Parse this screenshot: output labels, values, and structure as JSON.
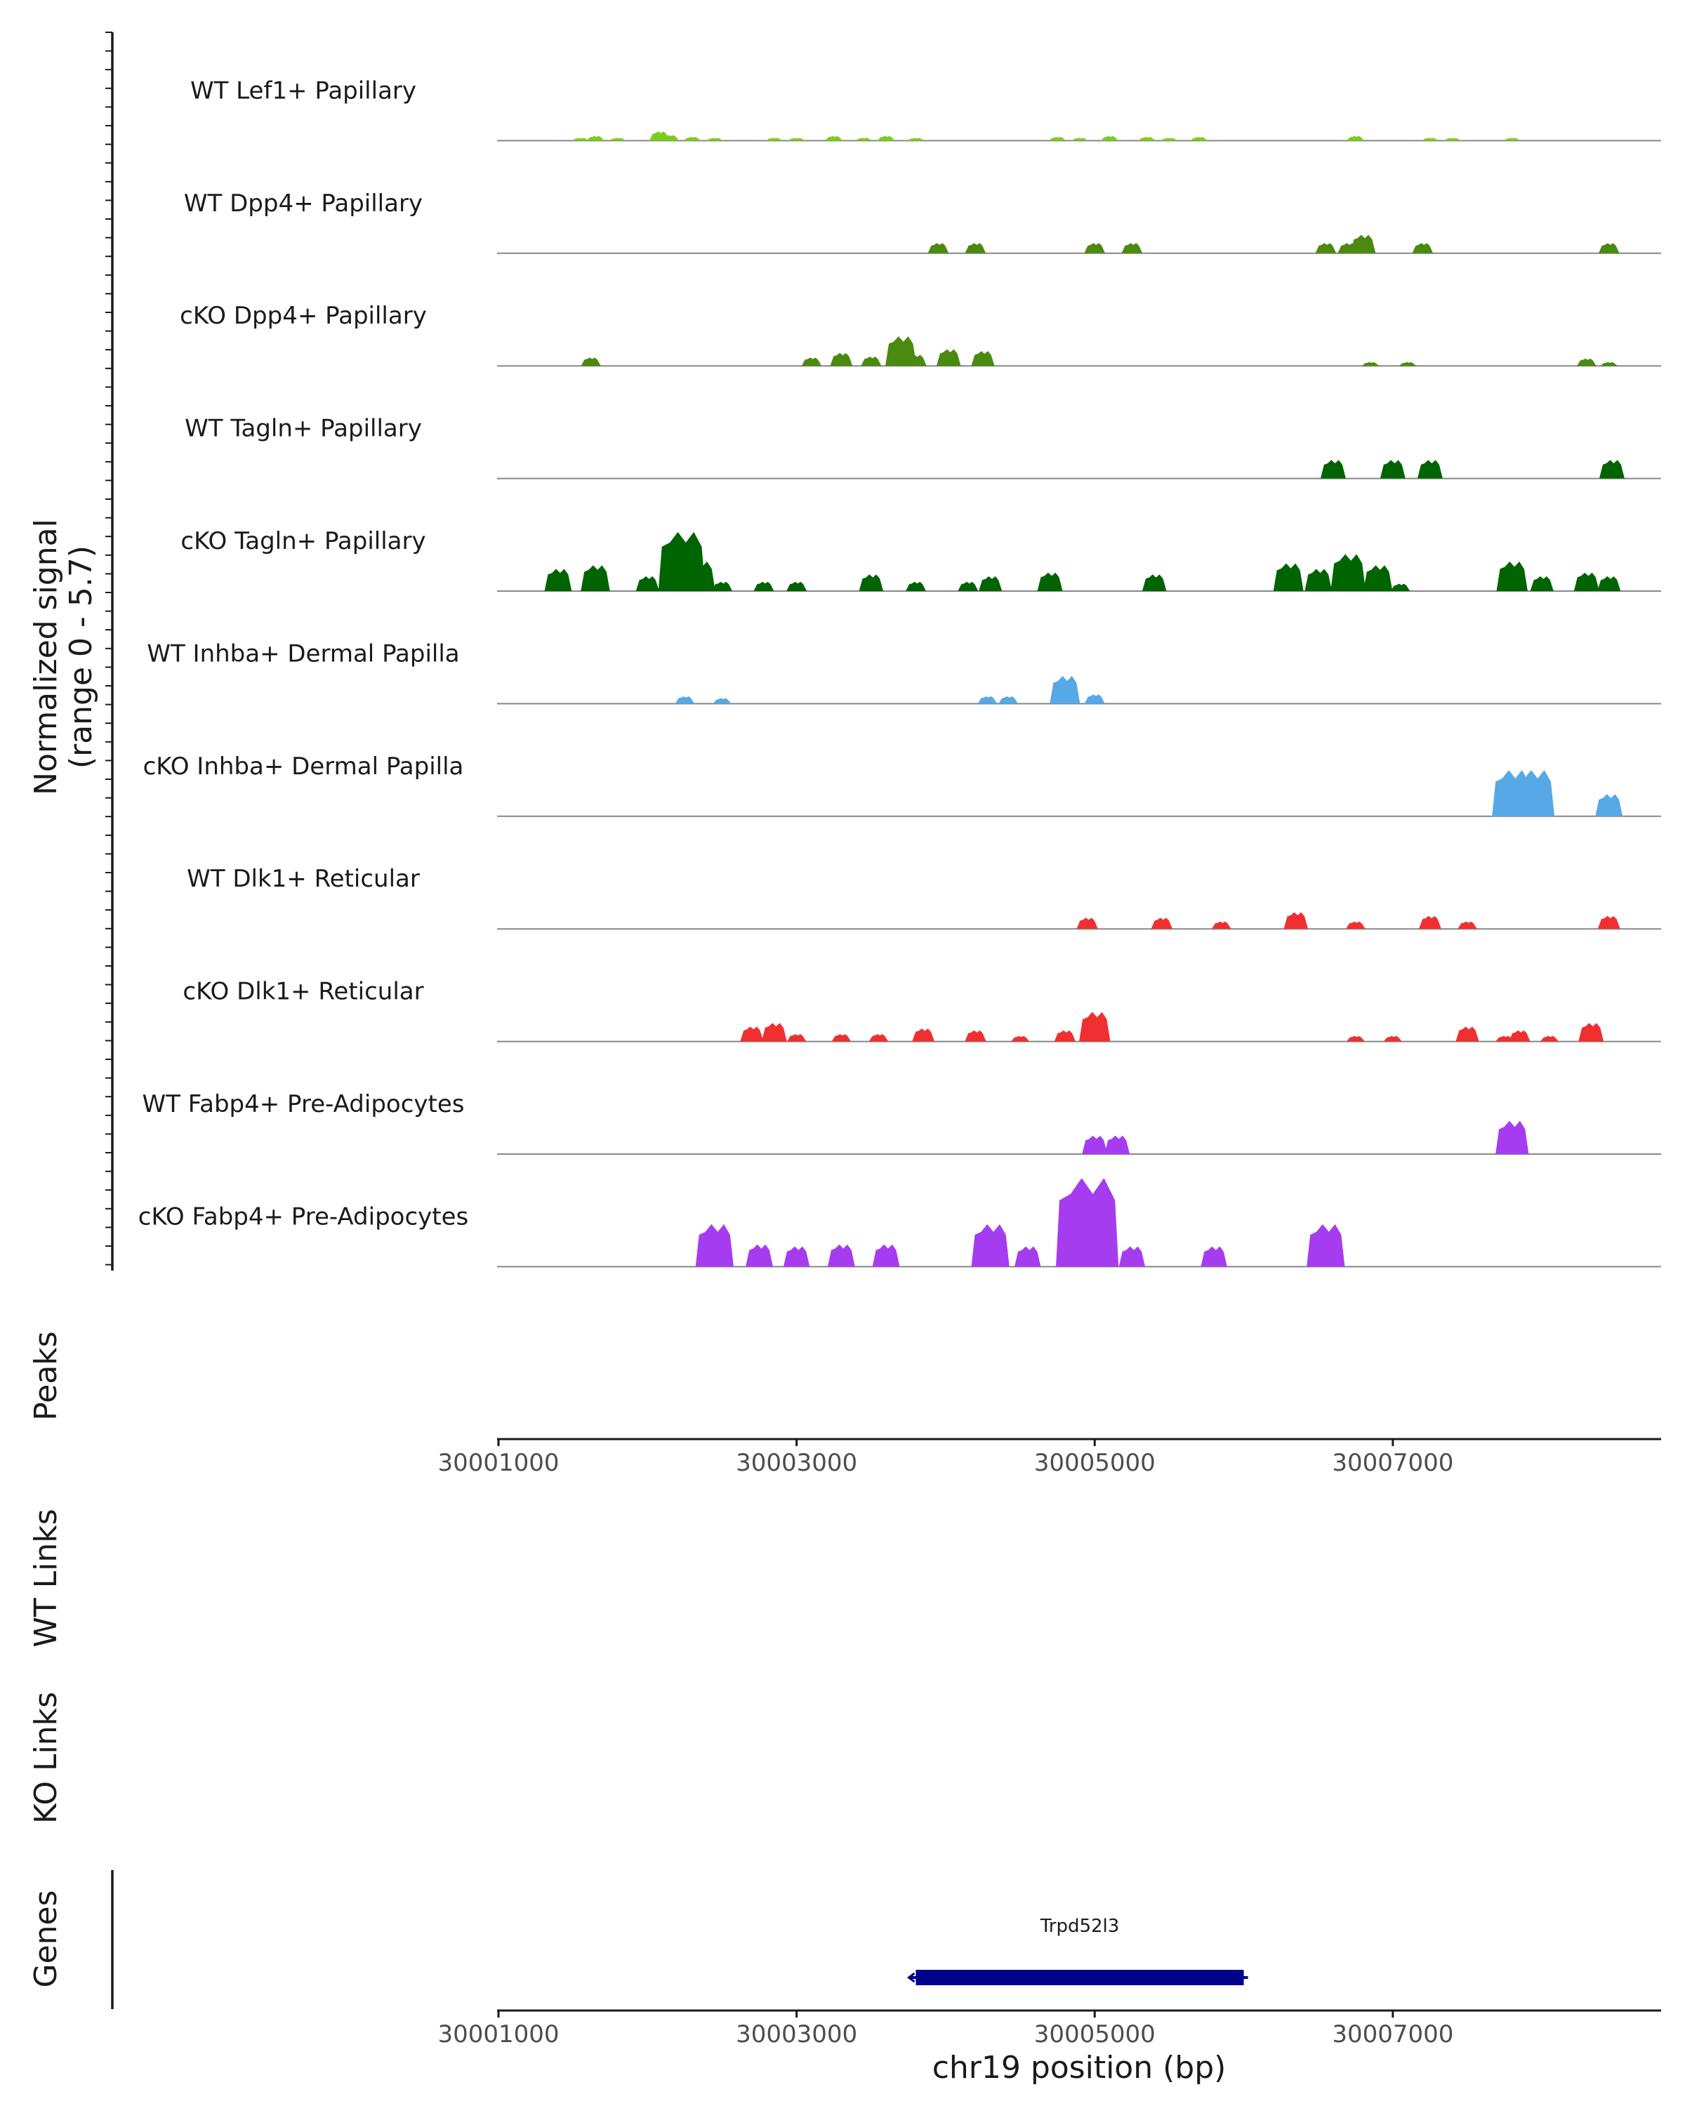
{
  "chart_data": {
    "type": "area",
    "title": "",
    "ylabel": "Normalized signal",
    "ylabel_range": "(range 0 - 5.7)",
    "xlabel": "chr19 position (bp)",
    "xlim": [
      30001000,
      30008800
    ],
    "ylim": [
      0,
      5.7
    ],
    "x_ticks": [
      30001000,
      30003000,
      30005000,
      30007000
    ],
    "x_tick_labels": [
      "30001000",
      "30003000",
      "30005000",
      "30007000"
    ],
    "series": [
      {
        "name": "WT Lef1+ Papillary",
        "color": "#7CCD1A",
        "points": [
          [
            30001550,
            0.15
          ],
          [
            30001650,
            0.25
          ],
          [
            30001800,
            0.15
          ],
          [
            30002080,
            0.5
          ],
          [
            30002150,
            0.3
          ],
          [
            30002300,
            0.2
          ],
          [
            30002450,
            0.15
          ],
          [
            30002850,
            0.15
          ],
          [
            30003000,
            0.15
          ],
          [
            30003250,
            0.25
          ],
          [
            30003450,
            0.15
          ],
          [
            30003600,
            0.25
          ],
          [
            30003800,
            0.15
          ],
          [
            30004750,
            0.2
          ],
          [
            30004900,
            0.15
          ],
          [
            30005100,
            0.25
          ],
          [
            30005350,
            0.2
          ],
          [
            30005500,
            0.15
          ],
          [
            30005700,
            0.2
          ],
          [
            30006750,
            0.25
          ],
          [
            30007250,
            0.15
          ],
          [
            30007400,
            0.15
          ],
          [
            30007800,
            0.15
          ]
        ]
      },
      {
        "name": "WT Dpp4+ Papillary",
        "color": "#4A8A0E",
        "points": [
          [
            30003950,
            0.55
          ],
          [
            30004200,
            0.55
          ],
          [
            30005000,
            0.55
          ],
          [
            30005250,
            0.55
          ],
          [
            30006550,
            0.55
          ],
          [
            30006700,
            0.55
          ],
          [
            30006800,
            1.0
          ],
          [
            30007200,
            0.55
          ],
          [
            30008450,
            0.55
          ]
        ]
      },
      {
        "name": "cKO Dpp4+ Papillary",
        "color": "#4A8A0E",
        "points": [
          [
            30001620,
            0.45
          ],
          [
            30003100,
            0.45
          ],
          [
            30003300,
            0.7
          ],
          [
            30003500,
            0.5
          ],
          [
            30003700,
            1.6
          ],
          [
            30003800,
            0.6
          ],
          [
            30004020,
            0.9
          ],
          [
            30004250,
            0.8
          ],
          [
            30006850,
            0.2
          ],
          [
            30007100,
            0.2
          ],
          [
            30008300,
            0.4
          ],
          [
            30008450,
            0.2
          ]
        ]
      },
      {
        "name": "WT Tagln+ Papillary",
        "color": "#006400",
        "points": [
          [
            30006600,
            1.0
          ],
          [
            30007000,
            1.0
          ],
          [
            30007250,
            1.0
          ],
          [
            30008470,
            1.0
          ]
        ]
      },
      {
        "name": "cKO Tagln+ Papillary",
        "color": "#006400",
        "points": [
          [
            30001400,
            1.2
          ],
          [
            30001650,
            1.4
          ],
          [
            30002000,
            0.8
          ],
          [
            30002230,
            3.2
          ],
          [
            30002350,
            1.6
          ],
          [
            30002500,
            0.5
          ],
          [
            30002780,
            0.5
          ],
          [
            30003000,
            0.5
          ],
          [
            30003500,
            0.9
          ],
          [
            30003800,
            0.5
          ],
          [
            30004150,
            0.5
          ],
          [
            30004300,
            0.8
          ],
          [
            30004700,
            1.0
          ],
          [
            30005400,
            0.9
          ],
          [
            30006300,
            1.5
          ],
          [
            30006500,
            1.2
          ],
          [
            30006700,
            2.0
          ],
          [
            30006900,
            1.4
          ],
          [
            30007050,
            0.4
          ],
          [
            30007800,
            1.6
          ],
          [
            30008000,
            0.8
          ],
          [
            30008300,
            1.0
          ],
          [
            30008450,
            0.8
          ]
        ]
      },
      {
        "name": "WT Inhba+ Dermal Papilla",
        "color": "#56A8E6",
        "points": [
          [
            30002250,
            0.4
          ],
          [
            30002500,
            0.3
          ],
          [
            30004280,
            0.4
          ],
          [
            30004420,
            0.4
          ],
          [
            30004800,
            1.5
          ],
          [
            30005000,
            0.5
          ]
        ]
      },
      {
        "name": "cKO Inhba+ Dermal Papilla",
        "color": "#56A8E6",
        "points": [
          [
            30007800,
            2.5
          ],
          [
            30007950,
            2.5
          ],
          [
            30008450,
            1.2
          ]
        ]
      },
      {
        "name": "WT Dlk1+ Reticular",
        "color": "#F03030",
        "points": [
          [
            30004950,
            0.6
          ],
          [
            30005450,
            0.6
          ],
          [
            30005850,
            0.4
          ],
          [
            30006350,
            0.9
          ],
          [
            30006750,
            0.4
          ],
          [
            30007250,
            0.7
          ],
          [
            30007500,
            0.4
          ],
          [
            30008450,
            0.7
          ]
        ]
      },
      {
        "name": "cKO Dlk1+ Reticular",
        "color": "#F03030",
        "points": [
          [
            30002700,
            0.8
          ],
          [
            30002850,
            1.0
          ],
          [
            30003000,
            0.4
          ],
          [
            30003300,
            0.4
          ],
          [
            30003550,
            0.4
          ],
          [
            30003850,
            0.7
          ],
          [
            30004200,
            0.6
          ],
          [
            30004500,
            0.3
          ],
          [
            30004800,
            0.6
          ],
          [
            30005000,
            1.6
          ],
          [
            30006750,
            0.3
          ],
          [
            30007000,
            0.3
          ],
          [
            30007500,
            0.8
          ],
          [
            30007750,
            0.3
          ],
          [
            30007850,
            0.6
          ],
          [
            30008050,
            0.3
          ],
          [
            30008330,
            1.0
          ]
        ]
      },
      {
        "name": "WT Fabp4+ Pre-Adipocytes",
        "color": "#A63CEF",
        "points": [
          [
            30005000,
            1.0
          ],
          [
            30005150,
            1.0
          ],
          [
            30007800,
            1.8
          ]
        ]
      },
      {
        "name": "cKO Fabp4+ Pre-Adipocytes",
        "color": "#A63CEF",
        "points": [
          [
            30002450,
            2.3
          ],
          [
            30002750,
            1.2
          ],
          [
            30003000,
            1.1
          ],
          [
            30003300,
            1.2
          ],
          [
            30003600,
            1.2
          ],
          [
            30004300,
            2.3
          ],
          [
            30004550,
            1.1
          ],
          [
            30004950,
            4.8
          ],
          [
            30005250,
            1.1
          ],
          [
            30005800,
            1.1
          ],
          [
            30006550,
            2.3
          ]
        ]
      }
    ],
    "genes": [
      {
        "name": "Trpd52l3",
        "start": 30003800,
        "end": 30006000,
        "strand": "-",
        "color": "#00008B"
      }
    ]
  },
  "panels": {
    "peaks_label": "Peaks",
    "wt_links_label": "WT Links",
    "ko_links_label": "KO Links",
    "genes_label": "Genes"
  }
}
